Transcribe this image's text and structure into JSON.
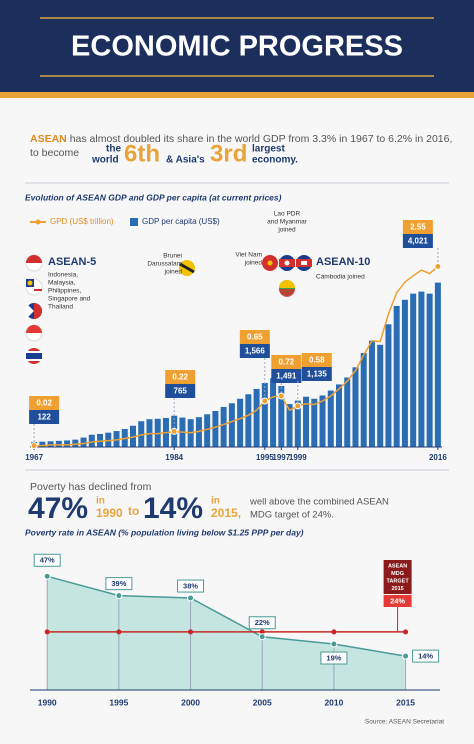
{
  "header": {
    "title": "ECONOMIC PROGRESS"
  },
  "intro": {
    "lead": "ASEAN",
    "text": "has almost doubled its share in the world GDP from 3.3% in 1967 to 6.2% in 2016,",
    "to_become": "to become",
    "the_world_1": "the",
    "the_world_2": "world",
    "rank_world": "6th",
    "conj": "& Asia's",
    "rank_asia": "3rd",
    "tail_1": "largest",
    "tail_2": "economy."
  },
  "poverty_headline": {
    "lead": "Poverty has declined from",
    "from": "47%",
    "from_in": "in",
    "from_year": "1990",
    "to": "to",
    "to_value": "14%",
    "to_in": "in",
    "to_year": "2015,",
    "note_1": "well above the combined ASEAN",
    "note_2": "MDG target of 24%."
  },
  "chart_data": [
    {
      "type": "bar-line",
      "title": "Evolution of ASEAN GDP and GDP per capita (at current prices)",
      "x": [
        1967,
        1968,
        1969,
        1970,
        1971,
        1972,
        1973,
        1974,
        1975,
        1976,
        1977,
        1978,
        1979,
        1980,
        1981,
        1982,
        1983,
        1984,
        1985,
        1986,
        1987,
        1988,
        1989,
        1990,
        1991,
        1992,
        1993,
        1994,
        1995,
        1996,
        1997,
        1998,
        1999,
        2000,
        2001,
        2002,
        2003,
        2004,
        2005,
        2006,
        2007,
        2008,
        2009,
        2010,
        2011,
        2012,
        2013,
        2014,
        2015,
        2016
      ],
      "xlim": [
        1966.5,
        2016.5
      ],
      "xticks": [
        1967,
        1984,
        1995,
        1997,
        1999,
        2016
      ],
      "ylim": [
        0,
        4500
      ],
      "y2lim": [
        0,
        2.6
      ],
      "series": [
        {
          "name": "GPD (US$ trillion)",
          "color": "#f0a030",
          "axis": "y2",
          "values": [
            0.02,
            0.02,
            0.03,
            0.03,
            0.03,
            0.04,
            0.05,
            0.07,
            0.08,
            0.09,
            0.1,
            0.12,
            0.14,
            0.17,
            0.19,
            0.19,
            0.2,
            0.22,
            0.21,
            0.2,
            0.22,
            0.25,
            0.28,
            0.32,
            0.36,
            0.4,
            0.45,
            0.52,
            0.65,
            0.71,
            0.72,
            0.52,
            0.58,
            0.61,
            0.6,
            0.65,
            0.72,
            0.82,
            0.93,
            1.08,
            1.3,
            1.5,
            1.49,
            1.88,
            2.18,
            2.33,
            2.42,
            2.5,
            2.45,
            2.55
          ]
        },
        {
          "name": "GDP per capita (US$)",
          "color": "#2a6db5",
          "values": [
            122,
            130,
            140,
            150,
            160,
            180,
            230,
            300,
            320,
            350,
            390,
            440,
            520,
            630,
            680,
            690,
            710,
            765,
            720,
            680,
            730,
            800,
            880,
            980,
            1070,
            1180,
            1290,
            1420,
            1566,
            1680,
            1491,
            1050,
            1135,
            1230,
            1180,
            1260,
            1380,
            1530,
            1700,
            1950,
            2300,
            2600,
            2500,
            3000,
            3450,
            3600,
            3750,
            3800,
            3750,
            4021
          ],
          "value_labels": [
            null,
            null,
            null,
            null,
            null,
            null,
            null,
            null,
            null,
            null,
            null,
            null,
            null,
            null,
            null,
            null,
            null,
            null,
            null,
            null,
            null,
            null,
            null,
            null,
            null,
            null,
            null,
            null,
            "1,566",
            null,
            "1,491",
            null,
            "1,135",
            null,
            null,
            null,
            null,
            null,
            null,
            null,
            null,
            null,
            null,
            null,
            null,
            null,
            null,
            null,
            null,
            "4,021"
          ]
        }
      ],
      "groups": [
        {
          "name": "ASEAN-5",
          "members": [
            "Indonesia,",
            "Malaysia,",
            "Philippines,",
            "Singapore and",
            "Thailand"
          ]
        }
      ],
      "events": [
        {
          "x": 1984,
          "label": [
            "Brunei",
            "Darussalam",
            "joined"
          ]
        },
        {
          "x": 1995,
          "label": [
            "Viet Nam",
            "joined"
          ]
        },
        {
          "x": 1997,
          "label": [
            "Lao PDR",
            "and Myanmar",
            "joined"
          ]
        },
        {
          "x": 1999,
          "title": "ASEAN-10",
          "label": [
            "Cambodia joined"
          ]
        }
      ]
    },
    {
      "type": "area",
      "title": "Poverty rate in ASEAN (% population living below $1.25 PPP per day)",
      "x": [
        1990,
        1995,
        2000,
        2005,
        2010,
        2015
      ],
      "values": [
        47,
        39,
        38,
        22,
        19,
        14
      ],
      "value_labels": [
        "47%",
        "39%",
        "38%",
        "22%",
        "19%",
        "14%"
      ],
      "xlim": [
        1988.8,
        2017.4
      ],
      "xticks": [
        1990,
        1995,
        2000,
        2005,
        2010,
        2015
      ],
      "ylim": [
        0,
        50
      ],
      "color": "#c5e5e1",
      "target": {
        "value": 24,
        "label": "24%",
        "title": [
          "ASEAN",
          "MDG",
          "TARGET",
          "2015"
        ],
        "color": "#c62828"
      },
      "source": "Source: ASEAN Secretariat"
    }
  ]
}
